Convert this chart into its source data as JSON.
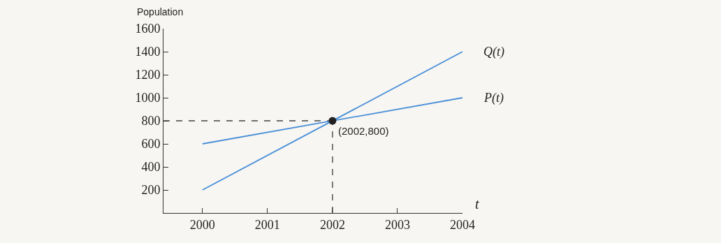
{
  "chart_data": {
    "type": "line",
    "ylabel": "Population",
    "xlabel": "t",
    "x": [
      2000,
      2004
    ],
    "series": [
      {
        "name": "Q(t)",
        "color": "#4a8fd8",
        "values": [
          200,
          1400
        ]
      },
      {
        "name": "P(t)",
        "color": "#4a8fd8",
        "values": [
          600,
          1000
        ]
      },
      {
        "type": "scatter",
        "color": "#222222",
        "marker": "circle",
        "x": [
          2002
        ],
        "values": [
          800
        ]
      }
    ],
    "annotations": [
      {
        "text": "(2002,800)",
        "x": 2002,
        "y": 800
      }
    ],
    "xlim": [
      1999.4,
      2004
    ],
    "xticks": [
      2000,
      2001,
      2002,
      2003,
      2004
    ],
    "ylim": [
      0,
      1600
    ],
    "yticks": [
      200,
      400,
      600,
      800,
      1000,
      1200,
      1400,
      1600
    ],
    "grid": false,
    "legend": false,
    "line_style": "solid"
  }
}
